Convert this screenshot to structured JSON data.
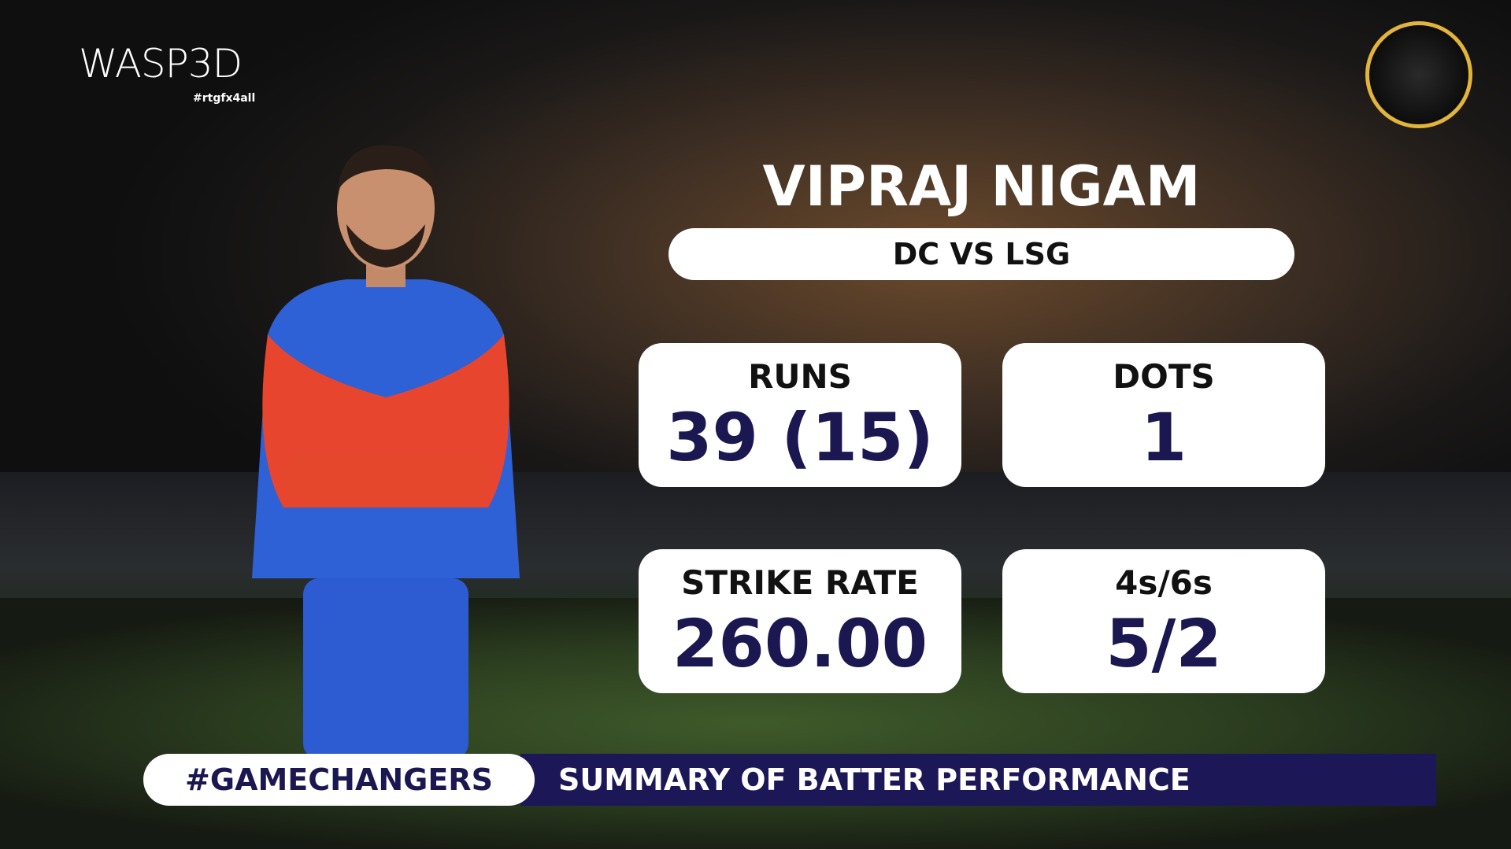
{
  "branding": {
    "logo": "WASP3D",
    "tagline": "#rtgfx4all"
  },
  "player": {
    "name": "VIPRAJ NIGAM",
    "match": "DC VS LSG"
  },
  "stats": [
    {
      "label": "RUNS",
      "value": "39 (15)"
    },
    {
      "label": "DOTS",
      "value": "1"
    },
    {
      "label": "STRIKE RATE",
      "value": "260.00"
    },
    {
      "label": "4s/6s",
      "value": "5/2"
    }
  ],
  "footer": {
    "hashtag": "#GAMECHANGERS",
    "caption": "SUMMARY OF BATTER PERFORMANCE"
  }
}
